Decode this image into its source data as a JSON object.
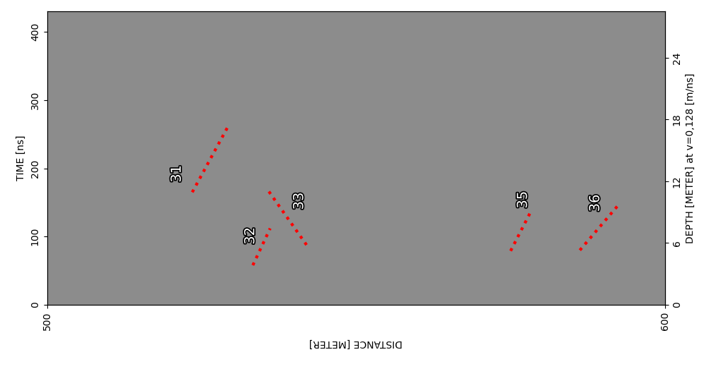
{
  "chart_data": {
    "type": "image",
    "x_label": "DISTANCE [METER]",
    "y_label": "TIME [ns]",
    "y2_label": "DEPTH [METER] at v=0,128 [m/ns]",
    "xlim": [
      500,
      600
    ],
    "xticks": [
      500,
      600
    ],
    "ylim": [
      0,
      430
    ],
    "yticks": [
      0,
      100,
      200,
      300,
      400
    ],
    "y2lim": [
      0,
      28.5
    ],
    "y2ticks": [
      0,
      6,
      12,
      18,
      24
    ],
    "color": "#8c8c8c",
    "annotations": [
      {
        "label": "31",
        "x": [
          523.5,
          529.2
        ],
        "y": [
          165,
          260
        ],
        "label_x": 521,
        "label_y": 192,
        "color": "#ff0000",
        "line_style": "dotted"
      },
      {
        "label": "32",
        "x": [
          533.3,
          536.1
        ],
        "y": [
          58,
          112
        ],
        "label_x": 532.9,
        "label_y": 101,
        "color": "#ff0000",
        "line_style": "dotted"
      },
      {
        "label": "33",
        "x": [
          535.9,
          542.2
        ],
        "y": [
          166,
          85
        ],
        "label_x": 540.8,
        "label_y": 152,
        "color": "#ff0000",
        "line_style": "dotted"
      },
      {
        "label": "35",
        "x": [
          575.0,
          578.4
        ],
        "y": [
          79,
          139
        ],
        "label_x": 577,
        "label_y": 154,
        "color": "#ff0000",
        "line_style": "dotted"
      },
      {
        "label": "36",
        "x": [
          586.2,
          592.5
        ],
        "y": [
          80,
          147
        ],
        "label_x": 588.7,
        "label_y": 149,
        "color": "#ff0000",
        "line_style": "dotted"
      }
    ]
  }
}
